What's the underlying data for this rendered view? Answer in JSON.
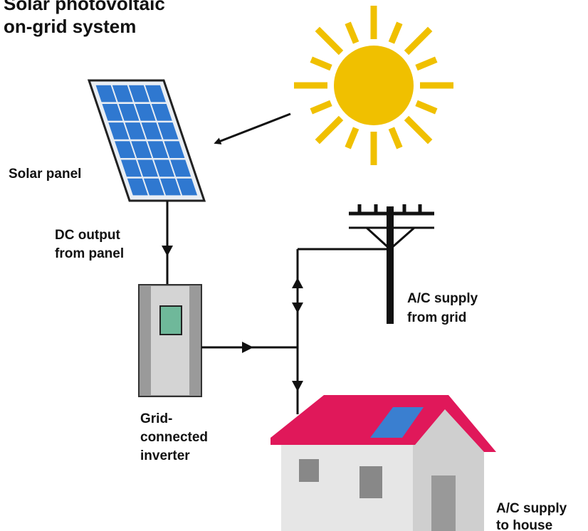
{
  "title": [
    "Solar photovoltaic",
    "on-grid system"
  ],
  "labels": {
    "solar_panel": "Solar panel",
    "dc_output": [
      "DC output",
      "from panel"
    ],
    "inverter": [
      "Grid-",
      "connected",
      "inverter"
    ],
    "grid_supply": [
      "A/C supply",
      "from grid"
    ],
    "house_supply": [
      "A/C supply",
      "to house"
    ]
  }
}
